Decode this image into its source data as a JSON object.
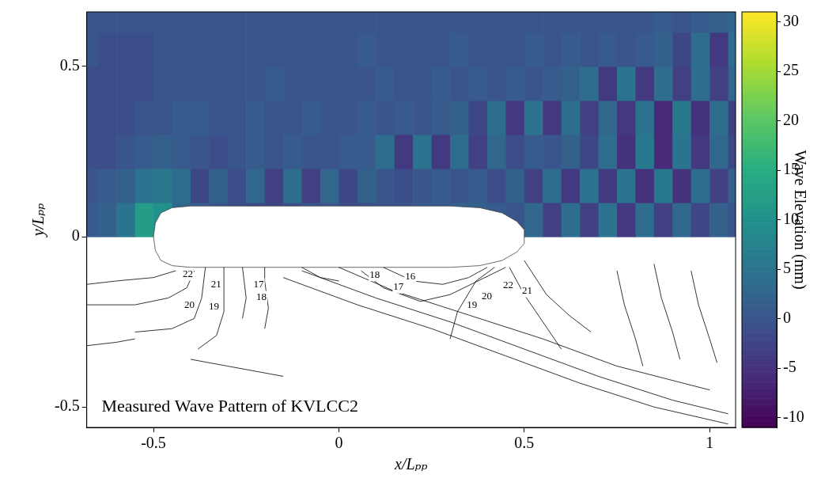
{
  "chart_data": {
    "type": "heatmap",
    "x_label": "x/Lₚₚ",
    "y_label": "y/Lₚₚ",
    "xlim": [
      -0.68,
      1.07
    ],
    "ylim": [
      -0.56,
      0.66
    ],
    "xticks": [
      -0.5,
      0,
      0.5,
      1
    ],
    "yticks": [
      -0.5,
      0,
      0.5
    ],
    "grid": false,
    "annotations": [
      {
        "text": "Measured Wave Pattern of KVLCC2",
        "x": -0.64,
        "y": -0.5
      }
    ],
    "heatmap": {
      "x_edges": [
        -0.7,
        -0.65,
        -0.6,
        -0.55,
        -0.5,
        -0.45,
        -0.4,
        -0.35,
        -0.3,
        -0.25,
        -0.2,
        -0.15,
        -0.1,
        -0.05,
        0,
        0.05,
        0.1,
        0.15,
        0.2,
        0.25,
        0.3,
        0.35,
        0.4,
        0.45,
        0.5,
        0.55,
        0.6,
        0.65,
        0.7,
        0.75,
        0.8,
        0.85,
        0.9,
        0.95,
        1,
        1.05,
        1.1
      ],
      "y_edges": [
        0,
        0.1,
        0.2,
        0.3,
        0.4,
        0.5,
        0.6,
        0.7
      ],
      "values": [
        [
          1,
          2,
          5,
          12,
          10,
          3,
          1,
          0,
          -1,
          -2,
          -2,
          -1,
          0,
          0,
          -1,
          -1,
          0,
          0,
          1,
          1,
          2,
          2,
          1,
          0,
          3,
          -3,
          4,
          -3,
          5,
          -4,
          4,
          -3,
          3,
          -2,
          2,
          0
        ],
        [
          0,
          1,
          2,
          5,
          6,
          4,
          -2,
          2,
          -1,
          3,
          -3,
          4,
          -3,
          3,
          -2,
          2,
          0,
          -1,
          0,
          1,
          0,
          1,
          -1,
          2,
          -3,
          4,
          -4,
          5,
          -4,
          5,
          -5,
          6,
          -5,
          4,
          -3,
          2
        ],
        [
          -1,
          -1,
          0,
          1,
          2,
          1,
          0,
          -1,
          0,
          1,
          0,
          1,
          0,
          0,
          1,
          1,
          4,
          -4,
          5,
          -4,
          4,
          -3,
          3,
          -1,
          1,
          0,
          2,
          -2,
          4,
          -5,
          6,
          -6,
          5,
          -4,
          3,
          -2
        ],
        [
          -1,
          -1,
          -1,
          0,
          0,
          1,
          1,
          0,
          0,
          1,
          0,
          0,
          1,
          0,
          0,
          1,
          0,
          1,
          0,
          1,
          2,
          -2,
          4,
          -4,
          5,
          -4,
          4,
          -3,
          3,
          -4,
          5,
          -6,
          6,
          -5,
          4,
          -3
        ],
        [
          -1,
          -1,
          -1,
          -1,
          0,
          0,
          0,
          0,
          0,
          0,
          1,
          0,
          0,
          0,
          0,
          0,
          1,
          0,
          0,
          1,
          0,
          1,
          0,
          1,
          0,
          1,
          2,
          4,
          -4,
          5,
          -4,
          4,
          -3,
          4,
          -3,
          3
        ],
        [
          0,
          -1,
          -1,
          -1,
          0,
          0,
          0,
          0,
          0,
          0,
          0,
          0,
          0,
          0,
          0,
          1,
          0,
          0,
          0,
          0,
          1,
          0,
          0,
          0,
          1,
          0,
          1,
          0,
          1,
          0,
          1,
          2,
          -2,
          4,
          -4,
          4
        ],
        [
          0,
          0,
          0,
          0,
          0,
          0,
          0,
          0,
          0,
          0,
          0,
          0,
          0,
          0,
          0,
          0,
          0,
          0,
          0,
          0,
          0,
          0,
          0,
          0,
          0,
          0,
          0,
          0,
          0,
          0,
          0,
          1,
          0,
          1,
          2,
          3
        ]
      ],
      "colorbar_label": "Wave Elevation (mm)",
      "colorbar_range": [
        -11,
        31
      ],
      "colorbar_ticks": [
        -10,
        -5,
        0,
        5,
        10,
        15,
        20,
        25,
        30
      ]
    },
    "hull": {
      "x": [
        -0.5,
        -0.495,
        -0.48,
        -0.45,
        -0.4,
        0.3,
        0.38,
        0.44,
        0.48,
        0.5,
        0.5,
        0.48,
        0.44,
        0.38,
        0.3,
        -0.4,
        -0.45,
        -0.48,
        -0.495,
        -0.5
      ],
      "y": [
        0,
        0.04,
        0.07,
        0.085,
        0.09,
        0.09,
        0.085,
        0.07,
        0.045,
        0.02,
        -0.02,
        -0.045,
        -0.07,
        -0.085,
        -0.09,
        -0.09,
        -0.085,
        -0.07,
        -0.04,
        0
      ]
    },
    "contour_lines": [
      [
        [
          -0.68,
          -0.14
        ],
        [
          -0.6,
          -0.13
        ],
        [
          -0.5,
          -0.12
        ],
        [
          -0.44,
          -0.1
        ]
      ],
      [
        [
          -0.68,
          -0.2
        ],
        [
          -0.55,
          -0.2
        ],
        [
          -0.46,
          -0.18
        ],
        [
          -0.41,
          -0.15
        ],
        [
          -0.39,
          -0.1
        ]
      ],
      [
        [
          -0.55,
          -0.28
        ],
        [
          -0.45,
          -0.27
        ],
        [
          -0.39,
          -0.24
        ],
        [
          -0.37,
          -0.18
        ],
        [
          -0.36,
          -0.09
        ]
      ],
      [
        [
          -0.38,
          -0.33
        ],
        [
          -0.33,
          -0.29
        ],
        [
          -0.31,
          -0.22
        ],
        [
          -0.31,
          -0.09
        ]
      ],
      [
        [
          -0.26,
          -0.24
        ],
        [
          -0.25,
          -0.18
        ],
        [
          -0.26,
          -0.09
        ]
      ],
      [
        [
          -0.2,
          -0.27
        ],
        [
          -0.19,
          -0.21
        ],
        [
          -0.2,
          -0.13
        ],
        [
          -0.2,
          -0.09
        ]
      ],
      [
        [
          -0.4,
          -0.36
        ],
        [
          -0.3,
          -0.38
        ],
        [
          -0.2,
          -0.4
        ],
        [
          -0.15,
          -0.41
        ]
      ],
      [
        [
          -0.68,
          -0.32
        ],
        [
          -0.6,
          -0.31
        ],
        [
          -0.55,
          -0.3
        ]
      ],
      [
        [
          -0.15,
          -0.12
        ],
        [
          0.05,
          -0.2
        ],
        [
          0.25,
          -0.27
        ],
        [
          0.45,
          -0.35
        ],
        [
          0.65,
          -0.43
        ],
        [
          0.85,
          -0.5
        ],
        [
          1.05,
          -0.55
        ]
      ],
      [
        [
          -0.1,
          -0.1
        ],
        [
          0.1,
          -0.18
        ],
        [
          0.3,
          -0.25
        ],
        [
          0.5,
          -0.33
        ],
        [
          0.7,
          -0.41
        ],
        [
          0.9,
          -0.48
        ],
        [
          1.05,
          -0.52
        ]
      ],
      [
        [
          0.0,
          -0.09
        ],
        [
          0.15,
          -0.16
        ],
        [
          0.35,
          -0.23
        ],
        [
          0.55,
          -0.3
        ],
        [
          0.75,
          -0.38
        ],
        [
          1.0,
          -0.45
        ]
      ],
      [
        [
          0.12,
          -0.09
        ],
        [
          0.2,
          -0.13
        ],
        [
          0.28,
          -0.14
        ],
        [
          0.35,
          -0.12
        ],
        [
          0.4,
          -0.09
        ]
      ],
      [
        [
          0.06,
          -0.1
        ],
        [
          0.12,
          -0.15
        ],
        [
          0.22,
          -0.19
        ],
        [
          0.3,
          -0.17
        ],
        [
          0.45,
          -0.09
        ]
      ],
      [
        [
          0.3,
          -0.3
        ],
        [
          0.32,
          -0.22
        ],
        [
          0.37,
          -0.13
        ],
        [
          0.42,
          -0.09
        ]
      ],
      [
        [
          0.46,
          -0.09
        ],
        [
          0.5,
          -0.17
        ],
        [
          0.55,
          -0.25
        ],
        [
          0.6,
          -0.33
        ]
      ],
      [
        [
          0.5,
          -0.07
        ],
        [
          0.56,
          -0.17
        ],
        [
          0.62,
          -0.23
        ],
        [
          0.68,
          -0.28
        ]
      ],
      [
        [
          0.75,
          -0.1
        ],
        [
          0.77,
          -0.2
        ],
        [
          0.8,
          -0.3
        ],
        [
          0.82,
          -0.38
        ]
      ],
      [
        [
          0.85,
          -0.08
        ],
        [
          0.87,
          -0.18
        ],
        [
          0.9,
          -0.28
        ],
        [
          0.92,
          -0.36
        ]
      ],
      [
        [
          0.95,
          -0.1
        ],
        [
          0.97,
          -0.2
        ],
        [
          1.0,
          -0.3
        ],
        [
          1.02,
          -0.37
        ]
      ],
      [
        [
          -0.1,
          -0.09
        ],
        [
          -0.05,
          -0.12
        ],
        [
          0.0,
          -0.13
        ]
      ]
    ],
    "contour_labels": [
      {
        "value": 22,
        "x": -0.421,
        "y": -0.11
      },
      {
        "value": 21,
        "x": -0.345,
        "y": -0.14
      },
      {
        "value": 20,
        "x": -0.417,
        "y": -0.202
      },
      {
        "value": 19,
        "x": -0.351,
        "y": -0.206
      },
      {
        "value": 17,
        "x": -0.23,
        "y": -0.14
      },
      {
        "value": 18,
        "x": -0.223,
        "y": -0.178
      },
      {
        "value": 18,
        "x": 0.083,
        "y": -0.112
      },
      {
        "value": 16,
        "x": 0.179,
        "y": -0.118
      },
      {
        "value": 17,
        "x": 0.147,
        "y": -0.148
      },
      {
        "value": 19,
        "x": 0.345,
        "y": -0.202
      },
      {
        "value": 20,
        "x": 0.385,
        "y": -0.176
      },
      {
        "value": 22,
        "x": 0.443,
        "y": -0.142
      },
      {
        "value": 21,
        "x": 0.494,
        "y": -0.159
      }
    ]
  }
}
